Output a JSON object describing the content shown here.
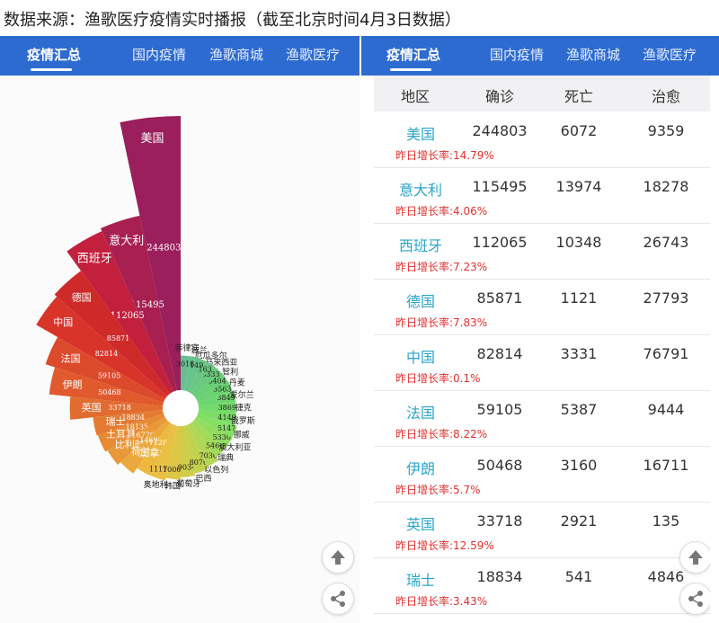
{
  "header": {
    "title": "数据来源：渔歌医疗疫情实时播报（截至北京时间4月3日数据）"
  },
  "nav": {
    "tabs": [
      "疫情汇总",
      "国内疫情",
      "渔歌商城",
      "渔歌医疗"
    ],
    "active_color": "#2d6bd0"
  },
  "table": {
    "headers": [
      "地区",
      "确诊",
      "死亡",
      "治愈"
    ],
    "growth_label": "昨日增长率:",
    "rows": [
      {
        "name": "美国",
        "confirmed": "244803",
        "deaths": "6072",
        "cured": "9359",
        "growth": "14.79%"
      },
      {
        "name": "意大利",
        "confirmed": "115495",
        "deaths": "13974",
        "cured": "18278",
        "growth": "4.06%"
      },
      {
        "name": "西班牙",
        "confirmed": "112065",
        "deaths": "10348",
        "cured": "26743",
        "growth": "7.23%"
      },
      {
        "name": "德国",
        "confirmed": "85871",
        "deaths": "1121",
        "cured": "27793",
        "growth": "7.83%"
      },
      {
        "name": "中国",
        "confirmed": "82814",
        "deaths": "3331",
        "cured": "76791",
        "growth": "0.1%"
      },
      {
        "name": "法国",
        "confirmed": "59105",
        "deaths": "5387",
        "cured": "9444",
        "growth": "8.22%"
      },
      {
        "name": "伊朗",
        "confirmed": "50468",
        "deaths": "3160",
        "cured": "16711",
        "growth": "5.7%"
      },
      {
        "name": "英国",
        "confirmed": "33718",
        "deaths": "2921",
        "cured": "135",
        "growth": "12.59%"
      },
      {
        "name": "瑞士",
        "confirmed": "18834",
        "deaths": "541",
        "cured": "4846",
        "growth": "3.43%"
      }
    ]
  },
  "icons": {
    "up": "arrow-up-icon",
    "share": "share-icon"
  },
  "chart_data": {
    "type": "nightingale-rose",
    "categories": [
      "美国",
      "意大利",
      "西班牙",
      "德国",
      "中国",
      "法国",
      "伊朗",
      "英国",
      "瑞士",
      "土耳其",
      "比利时",
      "荷兰",
      "加拿大",
      "奥地利",
      "韩国",
      "葡萄牙",
      "巴西",
      "以色列",
      "瑞典",
      "澳大利亚",
      "挪威",
      "俄罗斯",
      "捷克",
      "爱尔兰",
      "丹麦",
      "智利",
      "马来西亚",
      "厄瓜多尔",
      "波兰",
      "菲律宾"
    ],
    "values": [
      244803,
      115495,
      112065,
      85871,
      82814,
      59105,
      50468,
      33718,
      18834,
      18135,
      16770,
      14697,
      11283,
      11171,
      10062,
      9034,
      8076,
      7030,
      5466,
      5330,
      5147,
      4149,
      3869,
      3849,
      3563,
      3404,
      3333,
      3163,
      3149,
      3018
    ]
  }
}
